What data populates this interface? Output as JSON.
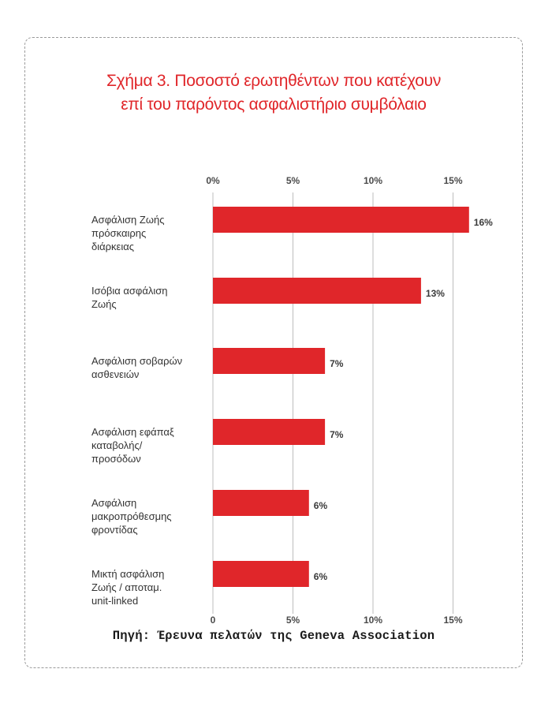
{
  "title_lines": [
    "Σχήμα 3. Ποσοστό ερωτηθέντων που κατέχουν",
    "επί του παρόντος ασφαλιστήριο συμβόλαιο"
  ],
  "source": "Πηγή: Έρευνα πελατών της Geneva Association",
  "colors": {
    "bar": "#e0262a",
    "title": "#e0262a",
    "grid": "#bdbdbd"
  },
  "chart_data": {
    "type": "bar",
    "orientation": "horizontal",
    "title": "Σχήμα 3. Ποσοστό ερωτηθέντων που κατέχουν επί του παρόντος ασφαλιστήριο συμβόλαιο",
    "xlim": [
      0,
      16
    ],
    "ticks": [
      0,
      5,
      10,
      15
    ],
    "tick_labels": [
      "0%",
      "5%",
      "10%",
      "15%"
    ],
    "tick_labels_bottom": [
      "0",
      "5%",
      "10%",
      "15%"
    ],
    "grid": true,
    "categories": [
      [
        "Ασφάλιση Ζωής",
        "πρόσκαιρης",
        "διάρκειας"
      ],
      [
        "Ισόβια ασφάλιση",
        "Ζωής"
      ],
      [
        "Ασφάλιση σοβαρών",
        "ασθενειών"
      ],
      [
        "Ασφάλιση εφάπαξ",
        "καταβολής/",
        "προσόδων"
      ],
      [
        "Ασφάλιση",
        "μακροπρόθεσμης",
        "φροντίδας"
      ],
      [
        "Μικτή ασφάλιση",
        "Ζωής / αποταμ.",
        "unit-linked"
      ]
    ],
    "values": [
      16,
      13,
      7,
      7,
      6,
      6
    ],
    "value_labels": [
      "16%",
      "13%",
      "7%",
      "7%",
      "6%",
      "6%"
    ]
  }
}
